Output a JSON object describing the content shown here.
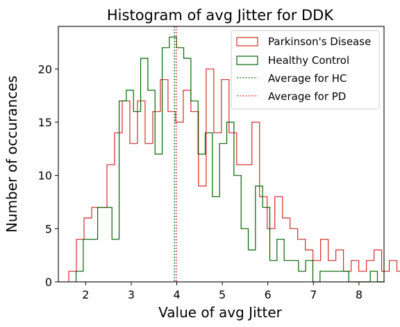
{
  "chart_data": {
    "type": "histogram",
    "title": "Histogram of avg Jitter for DDK",
    "xlabel": "Value of avg Jitter",
    "ylabel": "Number of occurances",
    "xlim": [
      1.4,
      8.55
    ],
    "ylim": [
      0,
      24
    ],
    "xticks": [
      2,
      3,
      4,
      5,
      6,
      7,
      8
    ],
    "yticks": [
      0,
      5,
      10,
      15,
      20
    ],
    "grid": false,
    "legend_position": "top-right",
    "series": [
      {
        "name": "Parkinson's Disease",
        "color": "#d62728",
        "style": "step",
        "bin_start": 1.63,
        "bin_width": 0.1675,
        "counts": [
          1,
          4,
          6,
          7,
          7,
          11,
          14,
          17,
          13,
          17,
          13,
          16,
          19,
          16,
          15,
          18,
          16,
          9,
          20,
          14,
          19,
          14,
          11,
          11,
          15,
          8,
          5,
          8,
          6,
          5,
          4,
          3,
          2,
          4,
          2,
          3,
          1,
          2,
          1,
          2,
          3,
          1,
          2,
          1,
          1,
          0,
          0,
          1
        ]
      },
      {
        "name": "Healthy Control",
        "color": "#006400",
        "style": "step",
        "bin_start": 1.79,
        "bin_width": 0.1575,
        "counts": [
          1,
          4,
          4,
          7,
          7,
          4,
          17,
          18,
          16,
          21,
          18,
          12,
          22,
          23,
          22,
          21,
          17,
          12,
          14,
          8,
          13,
          15,
          10,
          5,
          3,
          9,
          7,
          2,
          4,
          2,
          2,
          1,
          2,
          0,
          1,
          1,
          1,
          1,
          0,
          0,
          0,
          1,
          0
        ]
      }
    ],
    "reference_lines": [
      {
        "name": "Average for HC",
        "x": 3.95,
        "color": "#006400",
        "dash": "dotted"
      },
      {
        "name": "Average for PD",
        "x": 3.99,
        "color": "#d62728",
        "dash": "dotted"
      }
    ]
  }
}
